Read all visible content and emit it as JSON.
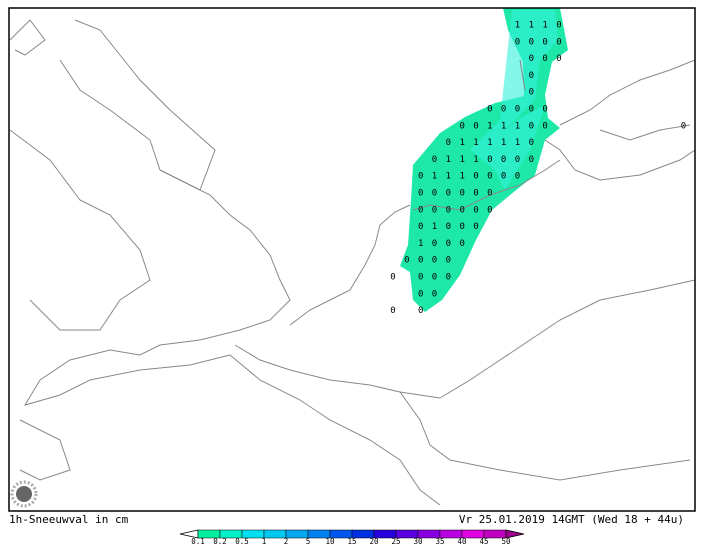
{
  "map": {
    "caption": "1h-Sneeuwval in cm",
    "valid_time": "Vr 25.01.2019 14GMT (Wed 18 + 44u)",
    "legend_labels": [
      "0.1",
      "0.2",
      "0.5",
      "1",
      "2",
      "5",
      "10",
      "15",
      "20",
      "25",
      "30",
      "35",
      "40",
      "45",
      "50"
    ],
    "grid_rows": [
      [
        null,
        null,
        null,
        null,
        null,
        null,
        null,
        null,
        null,
        "1",
        "1",
        "1",
        "0"
      ],
      [
        null,
        null,
        null,
        null,
        null,
        null,
        null,
        null,
        null,
        "0",
        "0",
        "0",
        "0"
      ],
      [
        null,
        null,
        null,
        null,
        null,
        null,
        null,
        null,
        null,
        null,
        "0",
        "0",
        "0"
      ],
      [
        null,
        null,
        null,
        null,
        null,
        null,
        null,
        null,
        null,
        null,
        "0"
      ],
      [
        null,
        null,
        null,
        null,
        null,
        null,
        null,
        null,
        null,
        null,
        "0"
      ],
      [
        null,
        null,
        null,
        null,
        null,
        null,
        null,
        "0",
        "0",
        "0",
        "0",
        "0"
      ],
      [
        null,
        null,
        null,
        null,
        null,
        "0",
        "0",
        "1",
        "1",
        "1",
        "0",
        "0",
        null,
        null,
        null,
        null,
        null,
        null,
        null,
        null,
        null,
        "0"
      ],
      [
        null,
        null,
        null,
        null,
        "0",
        "1",
        "1",
        "1",
        "1",
        "1",
        "0"
      ],
      [
        null,
        null,
        null,
        "0",
        "1",
        "1",
        "1",
        "0",
        "0",
        "0",
        "0"
      ],
      [
        null,
        null,
        "0",
        "1",
        "1",
        "1",
        "0",
        "0",
        "0",
        "0"
      ],
      [
        null,
        null,
        "0",
        "0",
        "0",
        "0",
        "0",
        "0"
      ],
      [
        null,
        null,
        "0",
        "0",
        "0",
        "0",
        "0",
        "0"
      ],
      [
        null,
        null,
        "0",
        "1",
        "0",
        "0",
        "0"
      ],
      [
        null,
        null,
        "1",
        "0",
        "0",
        "0"
      ],
      [
        null,
        "0",
        "0",
        "0",
        "0"
      ],
      [
        "0",
        null,
        "0",
        "0",
        "0"
      ],
      [
        null,
        null,
        "0",
        "0"
      ],
      [
        "0",
        null,
        "0"
      ]
    ]
  }
}
